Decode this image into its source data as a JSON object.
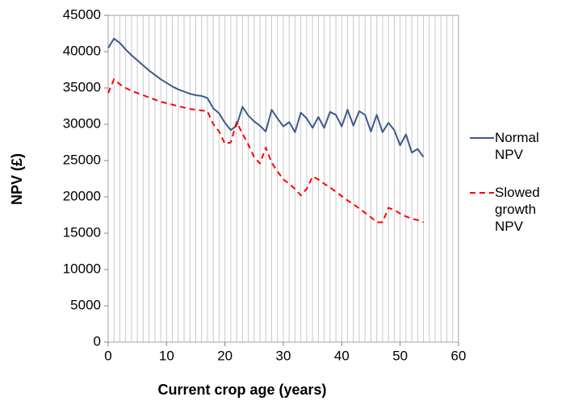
{
  "chart_data": {
    "type": "line",
    "x_label": "Current crop age (years)",
    "y_label": "NPV (£)",
    "x": [
      0,
      1,
      2,
      3,
      4,
      5,
      6,
      7,
      8,
      9,
      10,
      11,
      12,
      13,
      14,
      15,
      16,
      17,
      18,
      19,
      20,
      21,
      22,
      23,
      24,
      25,
      26,
      27,
      28,
      29,
      30,
      31,
      32,
      33,
      34,
      35,
      36,
      37,
      38,
      39,
      40,
      41,
      42,
      43,
      44,
      45,
      46,
      47,
      48,
      49,
      50,
      51,
      52,
      53,
      54
    ],
    "series": [
      {
        "name": "Normal NPV",
        "color": "#3c5a8a",
        "dash": false,
        "values": [
          40500,
          41800,
          41200,
          40300,
          39500,
          38800,
          38100,
          37400,
          36800,
          36200,
          35700,
          35200,
          34800,
          34500,
          34200,
          34000,
          33900,
          33600,
          32200,
          31500,
          30200,
          29200,
          29800,
          32400,
          31200,
          30400,
          29800,
          29000,
          32000,
          30800,
          29700,
          30300,
          28900,
          31600,
          30800,
          29500,
          31000,
          29500,
          31700,
          31300,
          29700,
          32000,
          29800,
          31800,
          31300,
          29000,
          31300,
          28900,
          30200,
          29200,
          27100,
          28600,
          26100,
          26600,
          25500
        ]
      },
      {
        "name": "Slowed growth NPV",
        "color": "#ff0000",
        "dash": true,
        "values": [
          34300,
          36200,
          35500,
          35000,
          34600,
          34300,
          34000,
          33700,
          33400,
          33100,
          32900,
          32700,
          32500,
          32300,
          32100,
          32000,
          31900,
          31800,
          30000,
          29000,
          27300,
          27500,
          30300,
          28700,
          27200,
          25500,
          24600,
          26800,
          24700,
          23500,
          22400,
          21800,
          21100,
          20200,
          21100,
          22800,
          22400,
          21800,
          21300,
          20700,
          20100,
          19500,
          19000,
          18400,
          17800,
          17200,
          16500,
          16500,
          18500,
          18200,
          17700,
          17300,
          17000,
          16800,
          16500
        ]
      }
    ],
    "xlim": [
      0,
      60
    ],
    "xticks": [
      0,
      10,
      20,
      30,
      40,
      50,
      60
    ],
    "x_minor_ticks": [
      0,
      1,
      2,
      3,
      4,
      5,
      6,
      7,
      8,
      9,
      10,
      11,
      12,
      13,
      14,
      15,
      16,
      17,
      18,
      19,
      20,
      21,
      22,
      23,
      24,
      25,
      26,
      27,
      28,
      29,
      30,
      31,
      32,
      33,
      34,
      35,
      36,
      37,
      38,
      39,
      40,
      41,
      42,
      43,
      44,
      45,
      46,
      47,
      48,
      49,
      50,
      51,
      52,
      53,
      54,
      55,
      56,
      57,
      58,
      59,
      60
    ],
    "ylim": [
      0,
      45000
    ],
    "yticks": [
      0,
      5000,
      10000,
      15000,
      20000,
      25000,
      30000,
      35000,
      40000,
      45000
    ],
    "grid": true,
    "legend": "right"
  }
}
